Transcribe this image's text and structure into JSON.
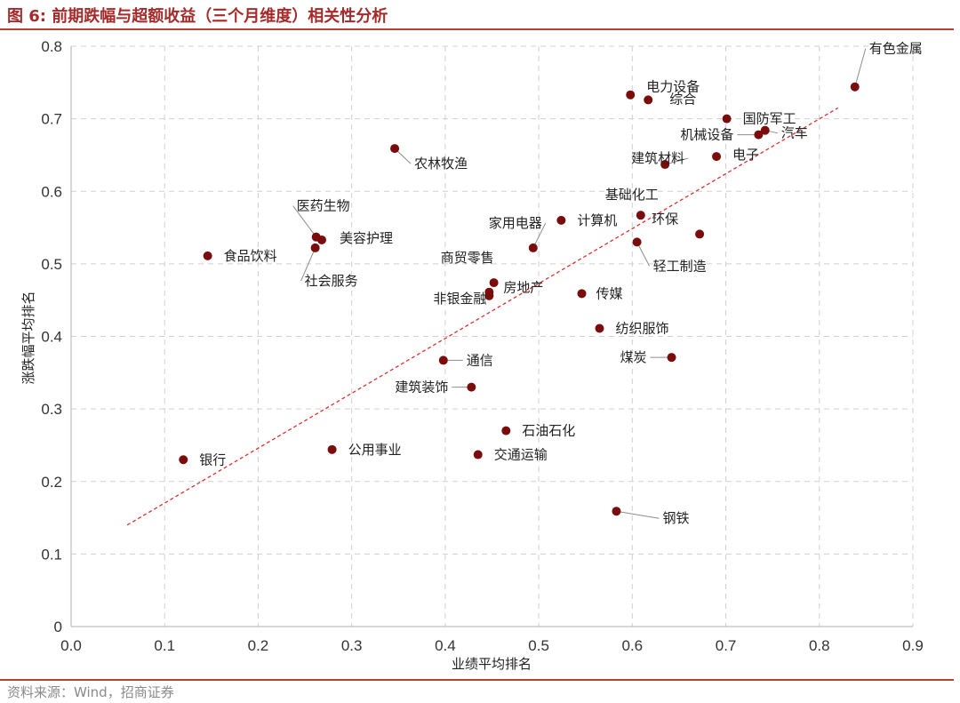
{
  "header": {
    "title": "图 6:  前期跌幅与超额收益（三个月维度）相关性分析"
  },
  "footer": {
    "source": "资料来源：Wind，招商证券"
  },
  "colors": {
    "marker": "#7a0c0c",
    "trendline": "#e03030",
    "grid": "#d0d0d0",
    "rule": "#b5412f"
  },
  "chart_data": {
    "type": "scatter",
    "title": "",
    "xlabel": "业绩平均排名",
    "ylabel": "涨跌幅平均排名",
    "xlim": [
      0,
      0.9
    ],
    "ylim": [
      0,
      0.8
    ],
    "x_ticks": [
      "0.0",
      "0.1",
      "0.2",
      "0.3",
      "0.4",
      "0.5",
      "0.6",
      "0.7",
      "0.8",
      "0.9"
    ],
    "y_ticks": [
      "0",
      "0.1",
      "0.2",
      "0.3",
      "0.4",
      "0.5",
      "0.6",
      "0.7",
      "0.8"
    ],
    "grid": true,
    "trendline": {
      "style": "dashed",
      "from": [
        0.06,
        0.14
      ],
      "to": [
        0.82,
        0.715
      ]
    },
    "points": [
      {
        "label": "有色金属",
        "x": 0.838,
        "y": 0.744
      },
      {
        "label": "电力设备",
        "x": 0.598,
        "y": 0.733
      },
      {
        "label": "综合",
        "x": 0.617,
        "y": 0.726
      },
      {
        "label": "国防军工",
        "x": 0.701,
        "y": 0.7
      },
      {
        "label": "汽车",
        "x": 0.742,
        "y": 0.684
      },
      {
        "label": "机械设备",
        "x": 0.735,
        "y": 0.678
      },
      {
        "label": "电子",
        "x": 0.69,
        "y": 0.648
      },
      {
        "label": "建筑材料",
        "x": 0.635,
        "y": 0.637
      },
      {
        "label": "农林牧渔",
        "x": 0.346,
        "y": 0.659
      },
      {
        "label": "基础化工",
        "x": 0.609,
        "y": 0.567
      },
      {
        "label": "环保",
        "x": 0.672,
        "y": 0.541
      },
      {
        "label": "计算机",
        "x": 0.524,
        "y": 0.56
      },
      {
        "label": "家用电器",
        "x": 0.494,
        "y": 0.522
      },
      {
        "label": "轻工制造",
        "x": 0.605,
        "y": 0.53
      },
      {
        "label": "医药生物",
        "x": 0.262,
        "y": 0.537
      },
      {
        "label": "美容护理",
        "x": 0.268,
        "y": 0.533
      },
      {
        "label": "社会服务",
        "x": 0.261,
        "y": 0.522
      },
      {
        "label": "食品饮料",
        "x": 0.146,
        "y": 0.511
      },
      {
        "label": "商贸零售",
        "x": 0.452,
        "y": 0.474
      },
      {
        "label": "房地产",
        "x": 0.447,
        "y": 0.461
      },
      {
        "label": "非银金融",
        "x": 0.447,
        "y": 0.456
      },
      {
        "label": "传媒",
        "x": 0.546,
        "y": 0.459
      },
      {
        "label": "纺织服饰",
        "x": 0.565,
        "y": 0.411
      },
      {
        "label": "煤炭",
        "x": 0.642,
        "y": 0.371
      },
      {
        "label": "通信",
        "x": 0.398,
        "y": 0.367
      },
      {
        "label": "建筑装饰",
        "x": 0.428,
        "y": 0.33
      },
      {
        "label": "石油石化",
        "x": 0.465,
        "y": 0.27
      },
      {
        "label": "公用事业",
        "x": 0.279,
        "y": 0.244
      },
      {
        "label": "交通运输",
        "x": 0.435,
        "y": 0.237
      },
      {
        "label": "银行",
        "x": 0.12,
        "y": 0.23
      },
      {
        "label": "钢铁",
        "x": 0.583,
        "y": 0.159
      }
    ]
  }
}
